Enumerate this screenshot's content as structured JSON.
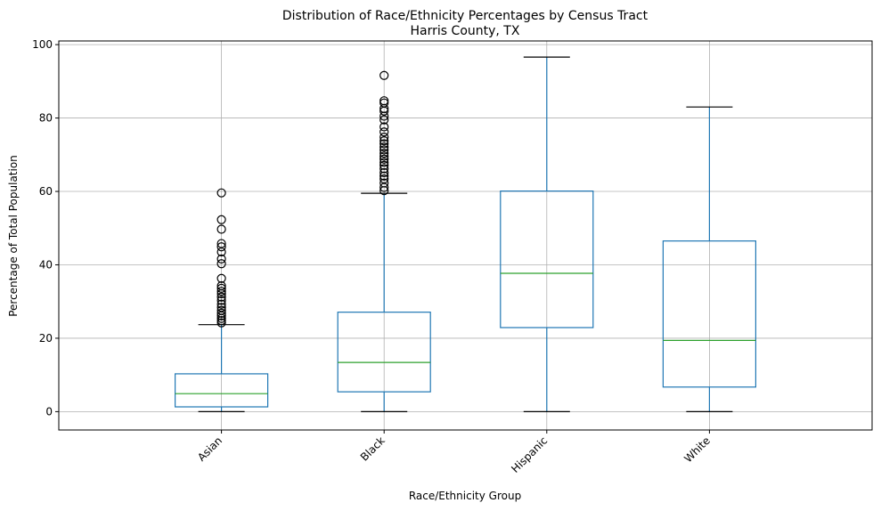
{
  "chart_data": {
    "type": "box",
    "title": "Distribution of Race/Ethnicity Percentages by Census Tract",
    "subtitle": "Harris County, TX",
    "xlabel": "Race/Ethnicity Group",
    "ylabel": "Percentage of Total Population",
    "ylim": [
      -5,
      101
    ],
    "yticks": [
      0,
      20,
      40,
      60,
      80,
      100
    ],
    "grid": true,
    "colors": {
      "box": "#1f77b4",
      "median": "#2ca02c",
      "cap": "#000000",
      "flier": "#000000",
      "grid": "#b0b0b0"
    },
    "categories": [
      "Asian",
      "Black",
      "Hispanic",
      "White"
    ],
    "boxes": [
      {
        "name": "Asian",
        "whisker_low": 0,
        "q1": 1.3,
        "median": 4.9,
        "q3": 10.3,
        "whisker_high": 23.7,
        "fliers": [
          24.2,
          24.8,
          25.4,
          26.1,
          26.8,
          27.6,
          28.4,
          29.3,
          30.3,
          31.2,
          32.1,
          32.8,
          33.6,
          34.3,
          36.3,
          40.3,
          41.6,
          43.5,
          44.9,
          45.8,
          49.7,
          52.3,
          59.6
        ]
      },
      {
        "name": "Black",
        "whisker_low": 0,
        "q1": 5.4,
        "median": 13.4,
        "q3": 27.1,
        "whisker_high": 59.5,
        "fliers": [
          60.2,
          61.1,
          62.3,
          63.4,
          64.2,
          65.1,
          66.2,
          67.1,
          67.9,
          68.8,
          69.6,
          70.4,
          71.3,
          72.1,
          73.0,
          73.8,
          74.8,
          76.2,
          77.6,
          79.5,
          80.5,
          81.9,
          82.6,
          84.1,
          84.7,
          91.6
        ]
      },
      {
        "name": "Hispanic",
        "whisker_low": 0,
        "q1": 22.9,
        "median": 37.7,
        "q3": 60.1,
        "whisker_high": 96.6,
        "fliers": []
      },
      {
        "name": "White",
        "whisker_low": 0,
        "q1": 6.7,
        "median": 19.4,
        "q3": 46.5,
        "whisker_high": 83.0,
        "fliers": []
      }
    ]
  }
}
